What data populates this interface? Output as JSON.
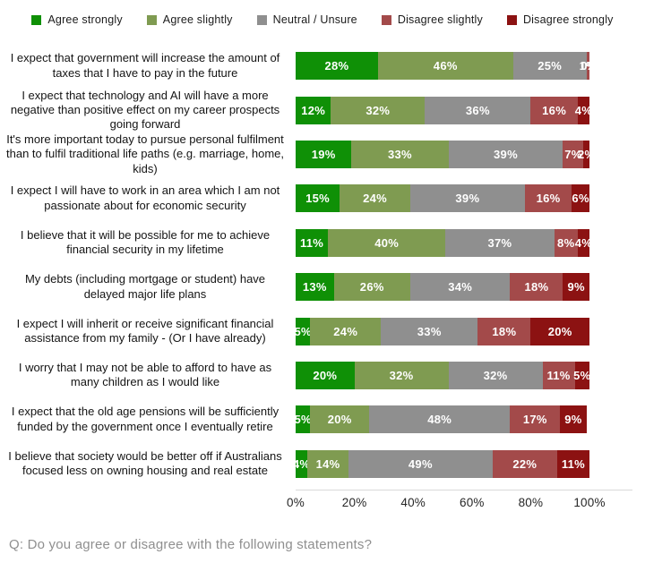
{
  "legend": [
    {
      "label": "Agree strongly",
      "color": "#0f9006"
    },
    {
      "label": "Agree slightly",
      "color": "#7f9b51"
    },
    {
      "label": "Neutral / Unsure",
      "color": "#8f8f8f"
    },
    {
      "label": "Disagree slightly",
      "color": "#a34a4a"
    },
    {
      "label": "Disagree strongly",
      "color": "#8c1212"
    }
  ],
  "chart_data": {
    "type": "bar",
    "orientation": "horizontal",
    "stacked": true,
    "value_suffix": "%",
    "categories": [
      "I expect that government will increase the amount of taxes that I have to pay in the future",
      "I expect that technology and AI will have a more negative than positive effect on my career prospects going forward",
      "It's more important today to pursue personal fulfilment than to fulfil traditional life paths (e.g. marriage, home, kids)",
      "I expect I will have to work in an area which I am not passionate about for economic security",
      "I believe that it will be possible for me to achieve financial security in my lifetime",
      "My debts (including mortgage or student) have delayed major life plans",
      "I expect I will inherit or receive significant financial assistance from my family - (Or I have already)",
      "I worry that I may not be able to afford to have as many children as I would like",
      "I expect that the old age pensions will be sufficiently funded by the government once I eventually retire",
      "I believe that society would be better off if Australians focused less on owning housing and real estate"
    ],
    "series": [
      {
        "name": "Agree strongly",
        "color": "#0f9006",
        "values": [
          28,
          12,
          19,
          15,
          11,
          13,
          5,
          20,
          5,
          4
        ]
      },
      {
        "name": "Agree slightly",
        "color": "#7f9b51",
        "values": [
          46,
          32,
          33,
          24,
          40,
          26,
          24,
          32,
          20,
          14
        ]
      },
      {
        "name": "Neutral / Unsure",
        "color": "#8f8f8f",
        "values": [
          25,
          36,
          39,
          39,
          37,
          34,
          33,
          32,
          48,
          49
        ]
      },
      {
        "name": "Disagree slightly",
        "color": "#a34a4a",
        "values": [
          1,
          16,
          7,
          16,
          8,
          18,
          18,
          11,
          17,
          22
        ]
      },
      {
        "name": "Disagree strongly",
        "color": "#8c1212",
        "values": [
          0,
          4,
          2,
          6,
          4,
          9,
          20,
          5,
          9,
          11
        ]
      }
    ],
    "x_axis": {
      "ticks": [
        "0%",
        "20%",
        "40%",
        "60%",
        "80%",
        "100%"
      ],
      "range": [
        0,
        100
      ],
      "grid": false
    },
    "legend_position": "top"
  },
  "question": "Q: Do you agree or disagree with the following statements?"
}
